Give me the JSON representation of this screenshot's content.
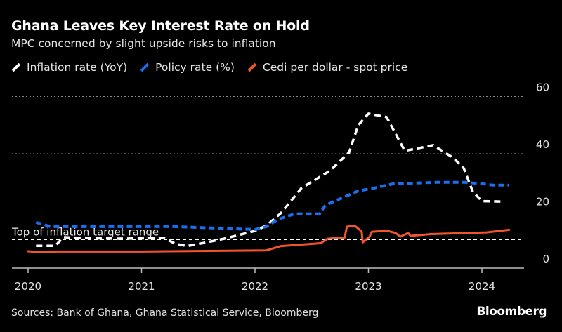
{
  "chart_data": {
    "type": "line",
    "title": "Ghana Leaves Key Interest Rate on Hold",
    "subtitle": "MPC concerned by slight upside risks to inflation",
    "xlabel": "",
    "ylabel": "",
    "xlim": [
      2019.86,
      2024.6
    ],
    "ylim": [
      0,
      60
    ],
    "x_ticks": [
      2020,
      2021,
      2022,
      2023,
      2024
    ],
    "x_tick_labels": [
      "2020",
      "2021",
      "2022",
      "2023",
      "2024"
    ],
    "y_ticks": [
      0,
      20,
      40,
      60
    ],
    "y_tick_labels": [
      "0",
      "20",
      "40",
      "60"
    ],
    "grid": true,
    "legend_position": "top-left",
    "annotation": {
      "label": "Top of inflation target range",
      "value": 10
    },
    "series": [
      {
        "name": "Inflation rate (YoY)",
        "color": "#ffffff",
        "style": "dashed",
        "x": [
          2020.07,
          2020.24,
          2020.31,
          2020.5,
          2020.79,
          2021.0,
          2021.2,
          2021.3,
          2021.4,
          2021.55,
          2021.73,
          2022.02,
          2022.12,
          2022.23,
          2022.41,
          2022.66,
          2022.83,
          2022.91,
          2023.0,
          2023.16,
          2023.32,
          2023.45,
          2023.57,
          2023.75,
          2023.84,
          2023.92,
          2024.0,
          2024.17
        ],
        "values": [
          7.8,
          7.8,
          10.8,
          10.5,
          10.3,
          10.4,
          10.5,
          8.5,
          7.7,
          8.8,
          10.3,
          13.2,
          15.5,
          19.3,
          28,
          34,
          40.5,
          50,
          54,
          52.8,
          41,
          42,
          43,
          38.5,
          34.9,
          26.7,
          23.4,
          23.3
        ]
      },
      {
        "name": "Policy rate (%)",
        "color": "#1a6ff0",
        "style": "dotted",
        "x": [
          2020.07,
          2020.2,
          2021.3,
          2022.0,
          2022.1,
          2022.2,
          2022.35,
          2022.57,
          2022.62,
          2022.91,
          2023.05,
          2023.22,
          2023.6,
          2023.85,
          2024.0,
          2024.1,
          2024.24
        ],
        "values": [
          16,
          14.5,
          14.5,
          13.5,
          14.5,
          17,
          19,
          19,
          22,
          27,
          28,
          29.5,
          30,
          30,
          29.5,
          29,
          29
        ]
      },
      {
        "name": "Cedi per dollar - spot price",
        "color": "#f2552c",
        "style": "solid",
        "x": [
          2020.0,
          2020.1,
          2020.25,
          2021.0,
          2022.1,
          2022.23,
          2022.58,
          2022.64,
          2022.79,
          2022.81,
          2022.88,
          2022.94,
          2022.95,
          2023.01,
          2023.03,
          2023.16,
          2023.24,
          2023.28,
          2023.35,
          2023.37,
          2023.55,
          2024.04,
          2024.24
        ],
        "values": [
          5.9,
          5.6,
          5.8,
          5.8,
          6.2,
          7.7,
          8.7,
          10.3,
          10.7,
          14.5,
          14.8,
          12.8,
          9,
          11,
          12.7,
          13.1,
          12.3,
          11,
          12.3,
          11.3,
          11.9,
          12.5,
          13.4
        ]
      }
    ]
  },
  "footer": {
    "sources": "Sources: Bank of Ghana, Ghana Statistical Service, Bloomberg",
    "logo": "Bloomberg"
  }
}
